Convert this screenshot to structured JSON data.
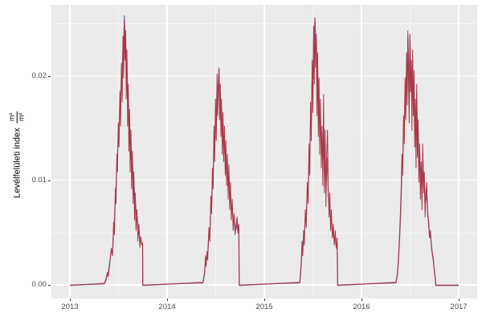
{
  "chart_data": {
    "type": "line",
    "title": "",
    "xlabel": "",
    "ylabel_text": "Levélfelületi index",
    "ylabel_fraction": {
      "numerator": "m²",
      "denominator": "m²"
    },
    "legend": "none",
    "grid": "on",
    "colors": {
      "figure_bg": "#FFFFFF",
      "panel_bg": "#EBEBEB",
      "grid": "#FFFFFF",
      "tick_text": "#4D4D4D",
      "axis_title": "#000000"
    },
    "xlim": [
      2012.81,
      2017.19
    ],
    "ylim": [
      -0.0013,
      0.0268
    ],
    "x_ticks": {
      "values": [
        2013,
        2014,
        2015,
        2016,
        2017
      ],
      "labels": [
        "2013",
        "2014",
        "2015",
        "2016",
        "2017"
      ]
    },
    "x_minor": [
      2013.5,
      2014.5,
      2015.5,
      2016.5
    ],
    "y_ticks": {
      "values": [
        0.0,
        0.01,
        0.02
      ],
      "labels": [
        "0.00",
        "0.01",
        "0.02"
      ]
    },
    "y_minor": [
      0.005,
      0.015,
      0.025
    ],
    "x": [
      2013.0,
      2013.355,
      2013.37,
      2013.385,
      2013.395,
      2013.41,
      2013.425,
      2013.44,
      2013.45,
      2013.458,
      2013.468,
      2013.475,
      2013.483,
      2013.49,
      2013.498,
      2013.506,
      2013.514,
      2013.522,
      2013.53,
      2013.538,
      2013.546,
      2013.553,
      2013.56,
      2013.567,
      2013.574,
      2013.58,
      2013.587,
      2013.594,
      2013.6,
      2013.607,
      2013.614,
      2013.62,
      2013.628,
      2013.635,
      2013.643,
      2013.65,
      2013.658,
      2013.665,
      2013.673,
      2013.68,
      2013.69,
      2013.7,
      2013.71,
      2013.72,
      2013.73,
      2013.74,
      2013.748,
      2013.75,
      2014.37,
      2014.385,
      2014.395,
      2014.402,
      2014.41,
      2014.418,
      2014.43,
      2014.44,
      2014.45,
      2014.458,
      2014.466,
      2014.474,
      2014.482,
      2014.49,
      2014.498,
      2014.506,
      2014.514,
      2014.52,
      2014.527,
      2014.534,
      2014.54,
      2014.547,
      2014.554,
      2014.56,
      2014.568,
      2014.575,
      2014.582,
      2014.59,
      2014.598,
      2014.605,
      2014.612,
      2014.62,
      2014.628,
      2014.636,
      2014.644,
      2014.652,
      2014.66,
      2014.67,
      2014.68,
      2014.69,
      2014.7,
      2014.71,
      2014.72,
      2014.73,
      2014.738,
      2014.742,
      2015.365,
      2015.378,
      2015.388,
      2015.396,
      2015.404,
      2015.412,
      2015.422,
      2015.432,
      2015.442,
      2015.452,
      2015.46,
      2015.468,
      2015.476,
      2015.484,
      2015.492,
      2015.5,
      2015.507,
      2015.514,
      2015.521,
      2015.528,
      2015.535,
      2015.542,
      2015.549,
      2015.556,
      2015.563,
      2015.57,
      2015.578,
      2015.586,
      2015.594,
      2015.602,
      2015.61,
      2015.618,
      2015.626,
      2015.634,
      2015.642,
      2015.65,
      2015.658,
      2015.666,
      2015.674,
      2015.682,
      2015.69,
      2015.7,
      2015.71,
      2015.72,
      2015.73,
      2015.74,
      2015.75,
      2015.754,
      2016.355,
      2016.368,
      2016.38,
      2016.39,
      2016.4,
      2016.408,
      2016.416,
      2016.424,
      2016.432,
      2016.44,
      2016.448,
      2016.456,
      2016.463,
      2016.47,
      2016.477,
      2016.484,
      2016.491,
      2016.498,
      2016.505,
      2016.512,
      2016.519,
      2016.526,
      2016.533,
      2016.54,
      2016.547,
      2016.554,
      2016.561,
      2016.568,
      2016.575,
      2016.582,
      2016.59,
      2016.598,
      2016.606,
      2016.614,
      2016.622,
      2016.63,
      2016.638,
      2016.646,
      2016.654,
      2016.662,
      2016.67,
      2016.68,
      2016.69,
      2016.7,
      2016.71,
      2016.72,
      2016.73,
      2016.74,
      2016.75,
      2016.758,
      2016.764,
      2017.0
    ],
    "series": [
      {
        "name": "lai-series-purple",
        "color": "#8A5F9E",
        "y": [
          0,
          0.0002,
          0.0006,
          0.001,
          0.0012,
          0.0022,
          0.0032,
          0.0035,
          0.0055,
          0.0062,
          0.0085,
          0.0095,
          0.0115,
          0.0125,
          0.0145,
          0.0152,
          0.0172,
          0.0178,
          0.0198,
          0.0205,
          0.0225,
          0.0228,
          0.0258,
          0.0238,
          0.0235,
          0.0205,
          0.0215,
          0.0182,
          0.0185,
          0.0158,
          0.016,
          0.0138,
          0.014,
          0.0122,
          0.012,
          0.0105,
          0.01,
          0.0088,
          0.0082,
          0.0072,
          0.0066,
          0.0058,
          0.0052,
          0.0045,
          0.0042,
          0.004,
          0.0038,
          0,
          0.0003,
          0.0012,
          0.0022,
          0.0022,
          0.0028,
          0.003,
          0.0048,
          0.005,
          0.0075,
          0.0078,
          0.01,
          0.0105,
          0.0135,
          0.0132,
          0.016,
          0.0152,
          0.0185,
          0.0178,
          0.0192,
          0.0208,
          0.0175,
          0.0185,
          0.0158,
          0.017,
          0.0142,
          0.0155,
          0.0132,
          0.0142,
          0.012,
          0.0128,
          0.0108,
          0.0115,
          0.0095,
          0.0105,
          0.0085,
          0.009,
          0.0072,
          0.0075,
          0.0062,
          0.0062,
          0.0055,
          0.0054,
          0.006,
          0.005,
          0.0055,
          0,
          0.0003,
          0.0018,
          0.0035,
          0.0038,
          0.0045,
          0.0048,
          0.0065,
          0.0068,
          0.0088,
          0.0092,
          0.012,
          0.0125,
          0.0158,
          0.016,
          0.0195,
          0.0198,
          0.0228,
          0.0232,
          0.0256,
          0.0235,
          0.024,
          0.0195,
          0.0205,
          0.0172,
          0.018,
          0.0152,
          0.0158,
          0.0135,
          0.0138,
          0.0118,
          0.0155,
          0.0108,
          0.0125,
          0.0095,
          0.0108,
          0.0122,
          0.0085,
          0.0078,
          0.0075,
          0.0062,
          0.0062,
          0.0052,
          0.005,
          0.0044,
          0.0045,
          0.0038,
          0.004,
          0,
          0.0003,
          0.001,
          0.0025,
          0.0042,
          0.0062,
          0.0085,
          0.0112,
          0.0118,
          0.0148,
          0.015,
          0.0182,
          0.0175,
          0.0205,
          0.019,
          0.0238,
          0.0212,
          0.0175,
          0.024,
          0.0205,
          0.0212,
          0.0168,
          0.0215,
          0.018,
          0.0195,
          0.0152,
          0.0172,
          0.0132,
          0.0185,
          0.014,
          0.0152,
          0.0115,
          0.0128,
          0.0098,
          0.0112,
          0.0088,
          0.0125,
          0.0102,
          0.01,
          0.0078,
          0.0082,
          0.0092,
          0.0068,
          0.0062,
          0.0048,
          0.0048,
          0.0038,
          0.003,
          0.0024,
          0.0014,
          0.0008,
          0,
          0
        ]
      },
      {
        "name": "lai-series-red",
        "color": "#AA3746",
        "y": [
          0,
          0.0001,
          0.0004,
          0.0012,
          0.0008,
          0.002,
          0.0035,
          0.0028,
          0.006,
          0.0048,
          0.0092,
          0.0078,
          0.0125,
          0.0108,
          0.0155,
          0.0132,
          0.0185,
          0.0152,
          0.0212,
          0.0175,
          0.0238,
          0.0198,
          0.0252,
          0.0215,
          0.0243,
          0.0178,
          0.0225,
          0.0152,
          0.0192,
          0.0128,
          0.0168,
          0.0108,
          0.0148,
          0.0092,
          0.0128,
          0.0078,
          0.0108,
          0.0062,
          0.0088,
          0.0052,
          0.0072,
          0.0042,
          0.0058,
          0.0036,
          0.0046,
          0.0038,
          0.004,
          0,
          0.0002,
          0.001,
          0.0028,
          0.0018,
          0.0032,
          0.0024,
          0.0055,
          0.0042,
          0.0085,
          0.0068,
          0.0112,
          0.0092,
          0.0152,
          0.0118,
          0.0178,
          0.0138,
          0.0202,
          0.0162,
          0.0185,
          0.0205,
          0.0158,
          0.0192,
          0.0142,
          0.0178,
          0.0125,
          0.0165,
          0.0118,
          0.0152,
          0.0105,
          0.0138,
          0.0095,
          0.0125,
          0.0082,
          0.0115,
          0.0072,
          0.0098,
          0.0062,
          0.0082,
          0.0052,
          0.0068,
          0.0048,
          0.0058,
          0.0065,
          0.0052,
          0.0058,
          0,
          0.0002,
          0.0015,
          0.0042,
          0.0028,
          0.0052,
          0.0038,
          0.0072,
          0.0055,
          0.0098,
          0.0078,
          0.0135,
          0.0105,
          0.0175,
          0.0138,
          0.0215,
          0.0165,
          0.0248,
          0.0192,
          0.0253,
          0.0208,
          0.0235,
          0.0162,
          0.0222,
          0.0142,
          0.0198,
          0.0125,
          0.0178,
          0.0112,
          0.0152,
          0.0095,
          0.0182,
          0.0088,
          0.0148,
          0.0075,
          0.0125,
          0.0148,
          0.0092,
          0.0065,
          0.0088,
          0.0052,
          0.0072,
          0.0045,
          0.0058,
          0.0038,
          0.0052,
          0.0035,
          0.0045,
          0,
          0.0002,
          0.0008,
          0.0022,
          0.0045,
          0.0068,
          0.0092,
          0.0125,
          0.0105,
          0.0162,
          0.0135,
          0.0198,
          0.0158,
          0.0222,
          0.0172,
          0.0243,
          0.0192,
          0.0155,
          0.0235,
          0.0185,
          0.0215,
          0.0148,
          0.0225,
          0.0162,
          0.0205,
          0.0132,
          0.0178,
          0.0112,
          0.0192,
          0.0122,
          0.0158,
          0.0098,
          0.0135,
          0.0082,
          0.0118,
          0.0072,
          0.0135,
          0.0088,
          0.0108,
          0.0065,
          0.0088,
          0.0098,
          0.0072,
          0.0058,
          0.0045,
          0.0052,
          0.0035,
          0.0028,
          0.0022,
          0.0012,
          0.0006,
          0,
          0
        ]
      }
    ]
  }
}
